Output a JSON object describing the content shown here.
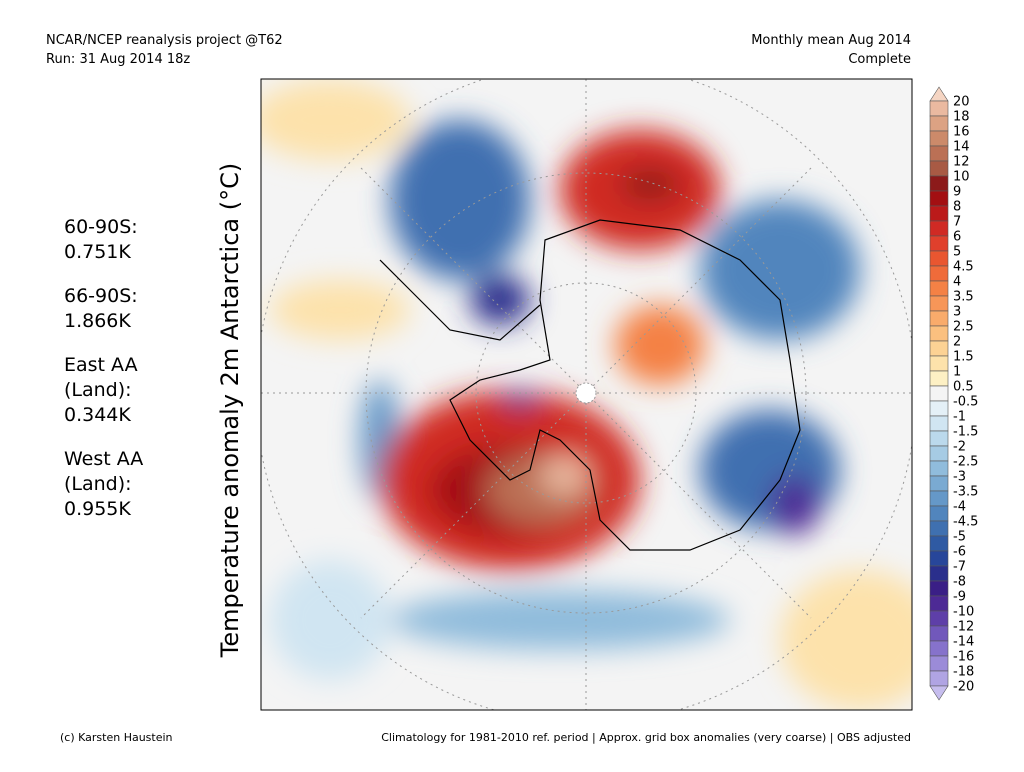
{
  "header": {
    "left": [
      "NCAR/NCEP reanalysis project @T62",
      "Run: 31 Aug 2014 18z"
    ],
    "right": [
      "Monthly mean Aug 2014",
      "Complete"
    ]
  },
  "title": "Temperature anomaly 2m Antarctica (°C)",
  "stats": [
    "60-90S:",
    "0.751K",
    "66-90S:",
    "1.866K",
    "East AA",
    "(Land):",
    "0.344K",
    "West AA",
    "(Land):",
    "0.955K"
  ],
  "colorbar": {
    "labels": [
      20,
      18,
      16,
      14,
      12,
      10,
      9,
      8,
      7,
      6,
      5,
      4.5,
      4,
      3.5,
      3,
      2.5,
      2,
      1.5,
      1,
      0.5,
      -0.5,
      -1,
      -1.5,
      -2,
      -2.5,
      -3,
      -3.5,
      -4,
      -4.5,
      -5,
      -6,
      -7,
      -8,
      -9,
      -10,
      -12,
      -14,
      -16,
      -18,
      -20
    ],
    "colors": [
      "#f5d5c3",
      "#eab9a0",
      "#dca283",
      "#cc8a6a",
      "#bb7055",
      "#a85a44",
      "#8c1a1a",
      "#a30f12",
      "#bb1a1a",
      "#d02a24",
      "#e0402c",
      "#e95630",
      "#ef6b3a",
      "#f48145",
      "#f79658",
      "#f9ab6b",
      "#fbc07f",
      "#fcd294",
      "#fde2ab",
      "#fdf0c4",
      "#f4f4f4",
      "#e4f0f7",
      "#d0e5f2",
      "#bbd9ec",
      "#a6cbe4",
      "#90bcdc",
      "#7aaad2",
      "#6598c8",
      "#5185bd",
      "#3f70b0",
      "#2f5aa3",
      "#27469a",
      "#2a2f8c",
      "#3a1f86",
      "#4d2a95",
      "#5e3fa8",
      "#7158bb",
      "#8672cb",
      "#9b8bd8",
      "#b0a4e3",
      "#c6bdee"
    ]
  },
  "footer": {
    "left": "(c) Karsten Haustein",
    "right": "Climatology for 1981-2010 ref. period | Approx. grid box anomalies (very coarse) | OBS adjusted"
  }
}
